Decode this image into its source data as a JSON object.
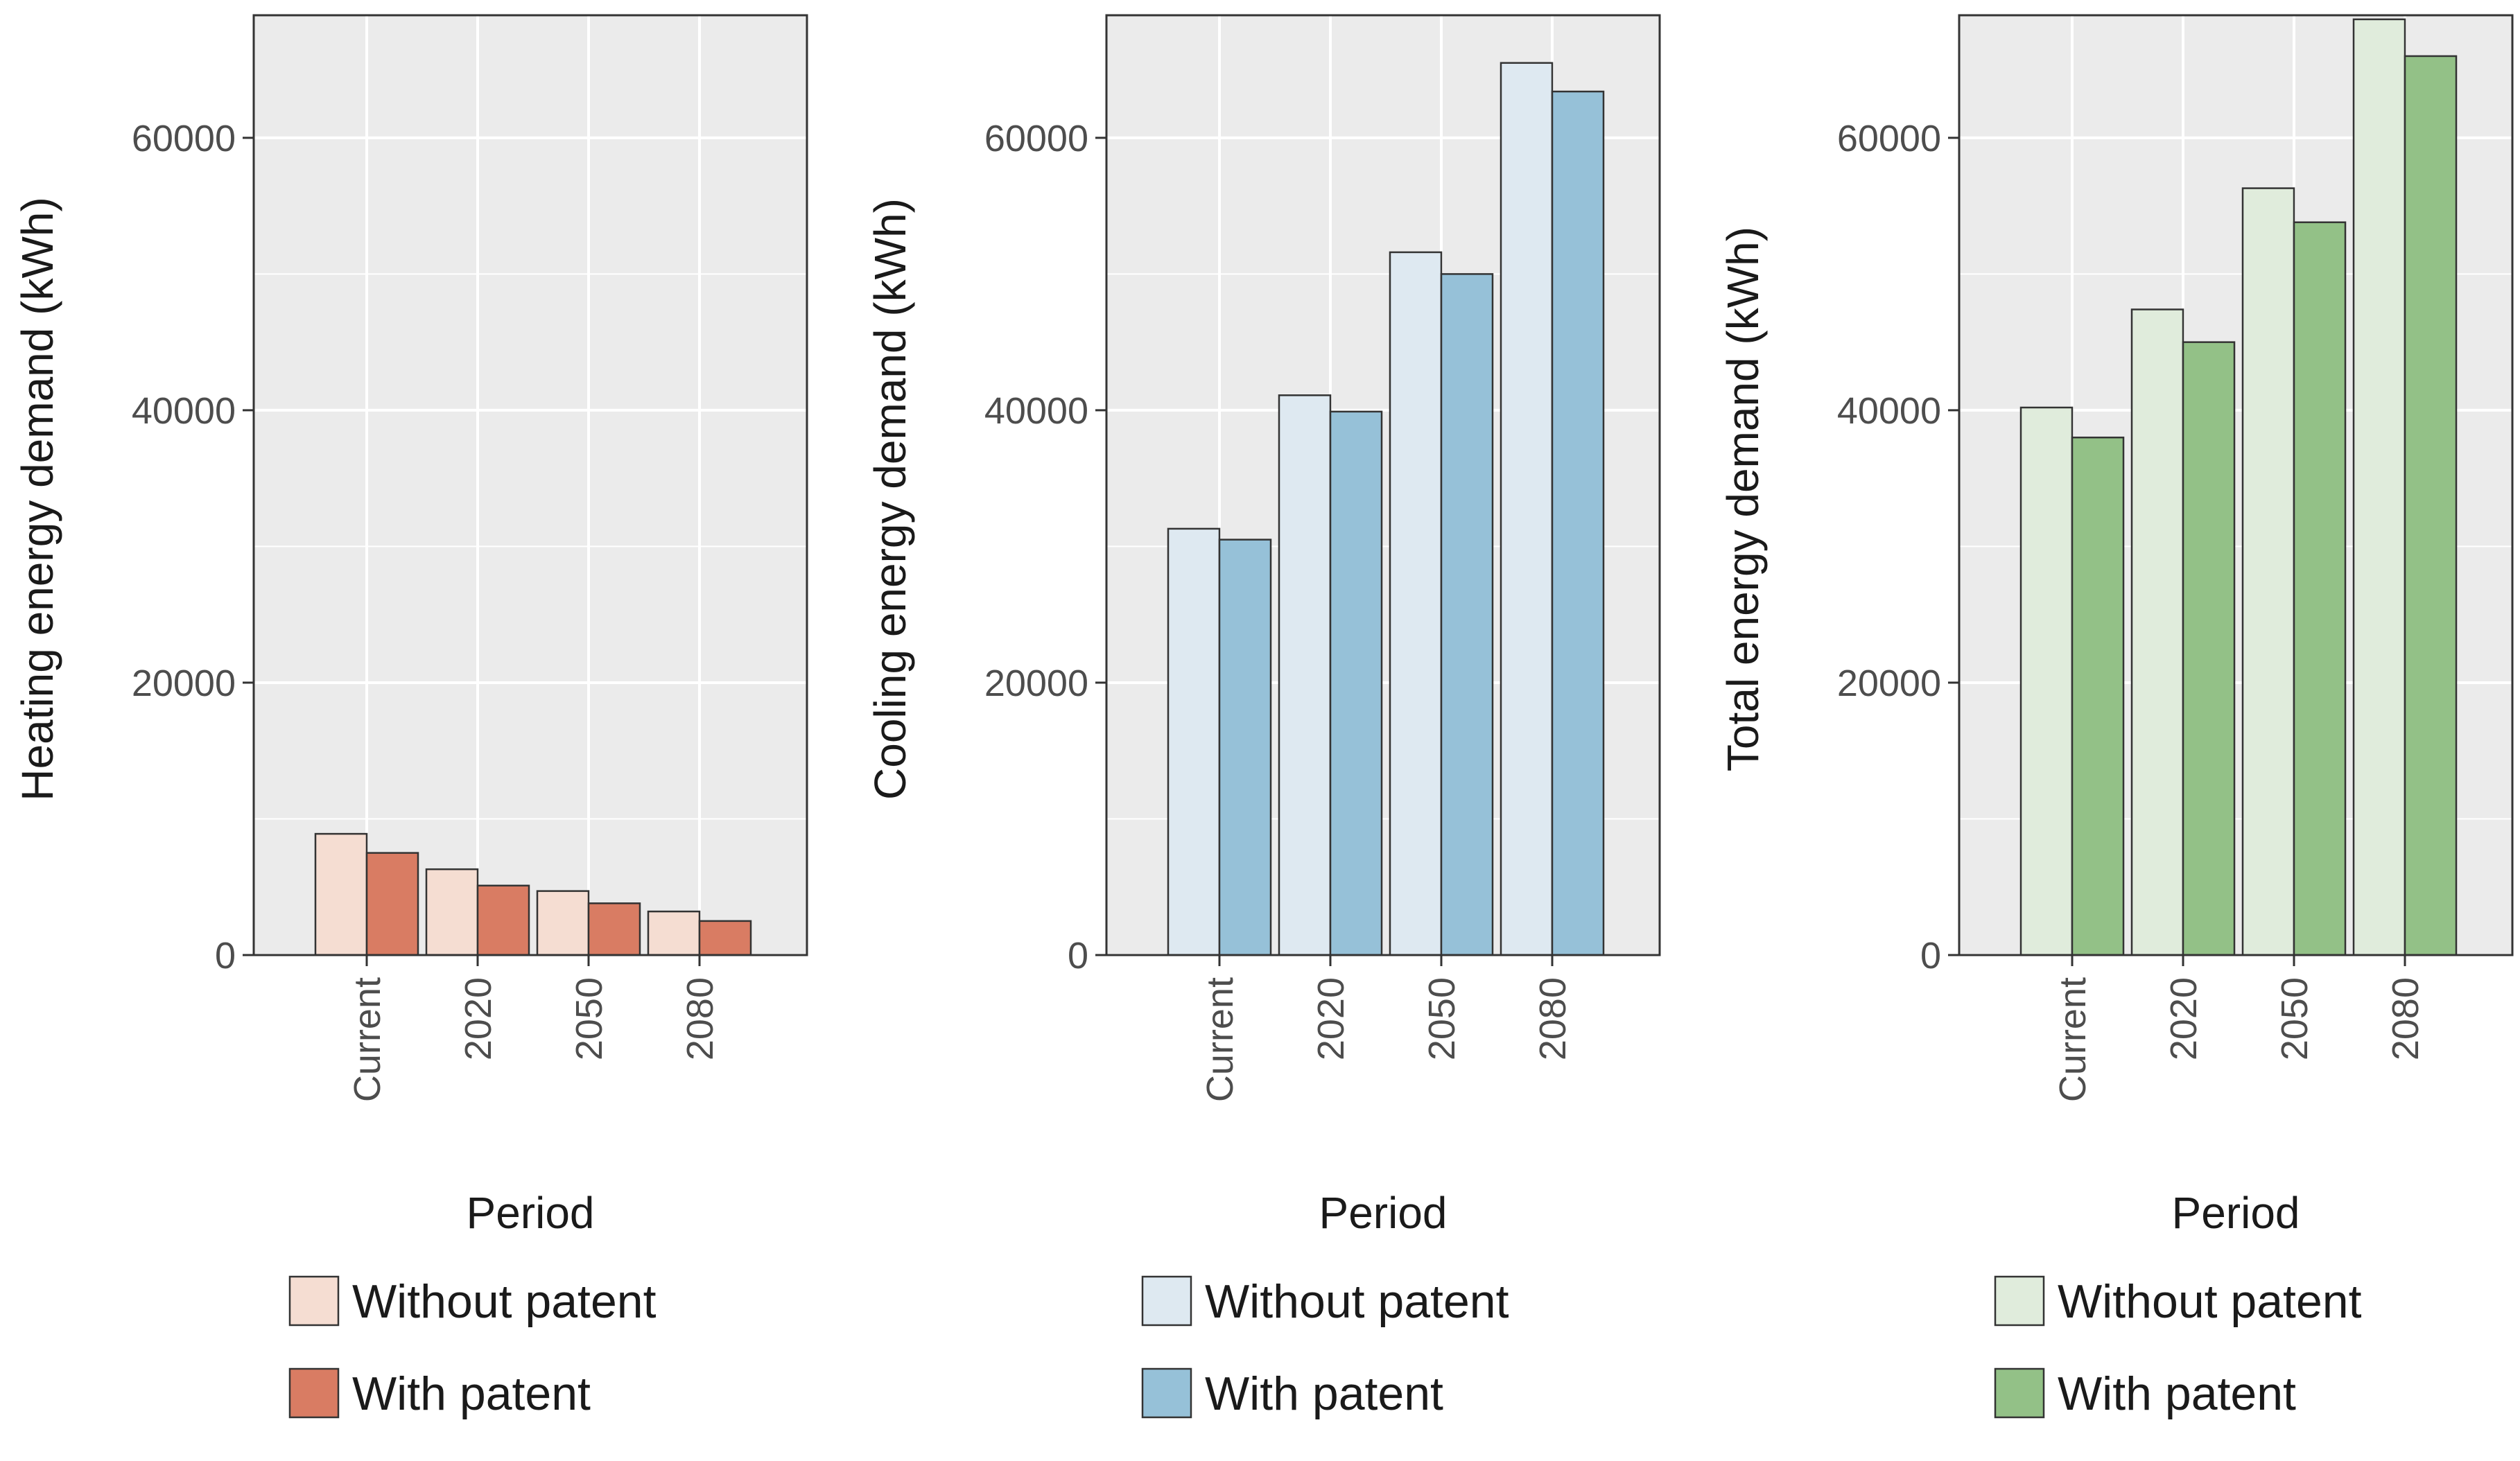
{
  "colors": {
    "panel_bg": "#EBEBEB",
    "grid": "#FFFFFF",
    "axis_line": "#333333",
    "bar_outline": "#333333"
  },
  "chart_data": [
    {
      "type": "bar",
      "categories": [
        "Current",
        "2020",
        "2050",
        "2080"
      ],
      "series": [
        {
          "name": "Without patent",
          "values": [
            8900,
            6300,
            4700,
            3200
          ],
          "color": "#F5DDD2"
        },
        {
          "name": "With patent",
          "values": [
            7500,
            5100,
            3800,
            2500
          ],
          "color": "#D97C63"
        }
      ],
      "xlabel": "Period",
      "ylabel": "Heating energy demand (kWh)",
      "ylim": [
        0,
        69000
      ],
      "yticks": [
        0,
        20000,
        40000,
        60000
      ],
      "ytick_labels": [
        "0",
        "20000",
        "40000",
        "60000"
      ],
      "grid": true,
      "legend": [
        "Without patent",
        "With patent"
      ],
      "legend_position": "bottom"
    },
    {
      "type": "bar",
      "categories": [
        "Current",
        "2020",
        "2050",
        "2080"
      ],
      "series": [
        {
          "name": "Without patent",
          "values": [
            31300,
            41100,
            51600,
            65500
          ],
          "color": "#DEE9F1"
        },
        {
          "name": "With patent",
          "values": [
            30500,
            39900,
            50000,
            63400
          ],
          "color": "#96C1D8"
        }
      ],
      "xlabel": "Period",
      "ylabel": "Cooling energy demand (kWh)",
      "ylim": [
        0,
        69000
      ],
      "yticks": [
        0,
        20000,
        40000,
        60000
      ],
      "ytick_labels": [
        "0",
        "20000",
        "40000",
        "60000"
      ],
      "grid": true,
      "legend": [
        "Without patent",
        "With patent"
      ],
      "legend_position": "bottom"
    },
    {
      "type": "bar",
      "categories": [
        "Current",
        "2020",
        "2050",
        "2080"
      ],
      "series": [
        {
          "name": "Without patent",
          "values": [
            40200,
            47400,
            56300,
            68700
          ],
          "color": "#E0ECDC"
        },
        {
          "name": "With patent",
          "values": [
            38000,
            45000,
            53800,
            66000
          ],
          "color": "#93C187"
        }
      ],
      "xlabel": "Period",
      "ylabel": "Total energy demand (kWh)",
      "ylim": [
        0,
        69000
      ],
      "yticks": [
        0,
        20000,
        40000,
        60000
      ],
      "ytick_labels": [
        "0",
        "20000",
        "40000",
        "60000"
      ],
      "grid": true,
      "legend": [
        "Without patent",
        "With patent"
      ],
      "legend_position": "bottom"
    }
  ]
}
